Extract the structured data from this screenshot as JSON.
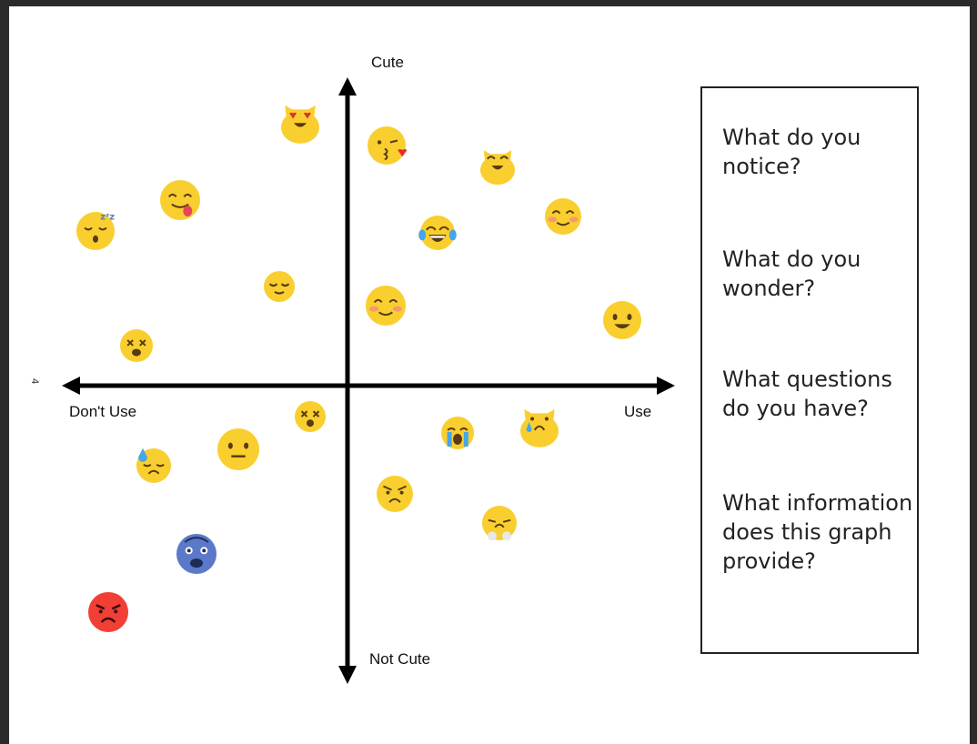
{
  "axes": {
    "top_label": "Cute",
    "bottom_label": "Not Cute",
    "left_label": "Don't Use",
    "right_label": "Use"
  },
  "page_marker": "4",
  "emojis": [
    {
      "name": "heart-eyes-cat-icon",
      "face": "cat",
      "color": "#F9CF2F"
    },
    {
      "name": "kissing-heart-icon",
      "face": "kiss",
      "color": "#F9CF2F"
    },
    {
      "name": "smiling-cat-icon",
      "face": "cat-smile",
      "color": "#F9CF2F"
    },
    {
      "name": "yum-face-icon",
      "face": "yum",
      "color": "#F9CF2F"
    },
    {
      "name": "sleeping-face-icon",
      "face": "sleep",
      "color": "#F9CF2F"
    },
    {
      "name": "joy-face-icon",
      "face": "joy",
      "color": "#F9CF2F"
    },
    {
      "name": "blush-face-icon",
      "face": "blush",
      "color": "#F9CF2F"
    },
    {
      "name": "relieved-face-icon",
      "face": "relieved",
      "color": "#F9CF2F"
    },
    {
      "name": "relaxed-face-icon",
      "face": "relaxed",
      "color": "#F9CF2F"
    },
    {
      "name": "slight-smile-face-icon",
      "face": "smile",
      "color": "#F9CF2F"
    },
    {
      "name": "dizzy-face-icon",
      "face": "dizzy",
      "color": "#F9CF2F"
    },
    {
      "name": "astonished-dizzy-face-icon",
      "face": "dizzy2",
      "color": "#F9CF2F"
    },
    {
      "name": "crying-cat-icon",
      "face": "cat-cry",
      "color": "#F9CF2F"
    },
    {
      "name": "sobbing-face-icon",
      "face": "sob",
      "color": "#F9CF2F"
    },
    {
      "name": "neutral-face-icon",
      "face": "neutral",
      "color": "#F9CF2F"
    },
    {
      "name": "sweat-face-icon",
      "face": "sweat",
      "color": "#F9CF2F"
    },
    {
      "name": "angry-face-icon",
      "face": "angry",
      "color": "#F9CF2F"
    },
    {
      "name": "triumph-face-icon",
      "face": "triumph",
      "color": "#F9CF2F"
    },
    {
      "name": "fearful-blue-face-icon",
      "face": "fear",
      "color": "#5B79C8"
    },
    {
      "name": "pouting-red-face-icon",
      "face": "pout",
      "color": "#F23F35"
    }
  ],
  "questions": [
    "What do you notice?",
    "What do you wonder?",
    "What questions do you have?",
    "What information does this graph provide?"
  ]
}
